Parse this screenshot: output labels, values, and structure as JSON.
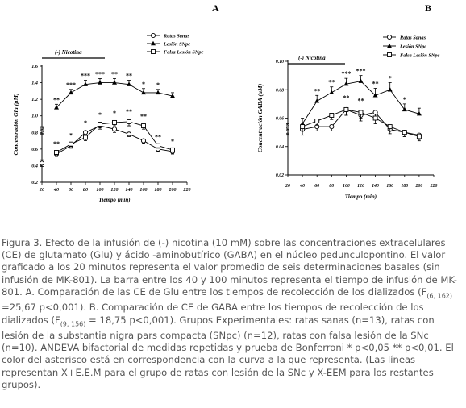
{
  "chart_data": [
    {
      "panel_label": "A",
      "type": "line",
      "bar_label": "(-) Nicotina",
      "xlabel": "Tiempo (min)",
      "ylabel": "Concentración Glu (μM)",
      "x_ticks": [
        "20",
        "40",
        "60",
        "80",
        "100",
        "120",
        "140",
        "160",
        "180",
        "200",
        "220"
      ],
      "y_ticks": [
        "0.2",
        "0.4",
        "0.6",
        "0.8",
        "1.0",
        "1.2",
        "1.4",
        "1.6"
      ],
      "xlim": [
        20,
        220
      ],
      "ylim": [
        0.2,
        1.6
      ],
      "basal": {
        "x": 20,
        "value": 0.82,
        "err": 0.05,
        "label": "0.82"
      },
      "basal_low": {
        "x": 20,
        "value": 0.43,
        "err": 0.04
      },
      "series": [
        {
          "name": "Ratas Sanas",
          "marker": "circle-open",
          "x": [
            40,
            60,
            80,
            100,
            120,
            140,
            160,
            180,
            200
          ],
          "values": [
            0.54,
            0.64,
            0.8,
            0.88,
            0.84,
            0.78,
            0.7,
            0.6,
            0.57
          ],
          "err": [
            0.03,
            0.03,
            0.04,
            0.04,
            0.04,
            0.03,
            0.03,
            0.03,
            0.03
          ]
        },
        {
          "name": "Lesión SNpc",
          "marker": "triangle-filled",
          "x": [
            40,
            60,
            80,
            100,
            120,
            140,
            160,
            180,
            200
          ],
          "values": [
            1.1,
            1.28,
            1.38,
            1.4,
            1.4,
            1.38,
            1.28,
            1.28,
            1.24
          ],
          "err": [
            0.04,
            0.04,
            0.05,
            0.05,
            0.05,
            0.05,
            0.05,
            0.04,
            0.04
          ]
        },
        {
          "name": "Falsa Lesión SNpc",
          "marker": "square-open",
          "x": [
            40,
            60,
            80,
            100,
            120,
            140,
            160,
            180,
            200
          ],
          "values": [
            0.56,
            0.66,
            0.74,
            0.9,
            0.92,
            0.93,
            0.88,
            0.64,
            0.59
          ],
          "err": [
            0.03,
            0.03,
            0.04,
            0.04,
            0.04,
            0.05,
            0.04,
            0.03,
            0.03
          ]
        }
      ],
      "annotations_lesion": [
        {
          "x": 40,
          "text": "**"
        },
        {
          "x": 60,
          "text": "***"
        },
        {
          "x": 80,
          "text": "***"
        },
        {
          "x": 100,
          "text": "***"
        },
        {
          "x": 120,
          "text": "**"
        },
        {
          "x": 140,
          "text": "**"
        },
        {
          "x": 160,
          "text": "*"
        },
        {
          "x": 180,
          "text": "*"
        }
      ],
      "annotations_lower": [
        {
          "x": 40,
          "text": "**"
        },
        {
          "x": 60,
          "text": "*"
        },
        {
          "x": 80,
          "text": "*"
        },
        {
          "x": 100,
          "text": "*"
        },
        {
          "x": 120,
          "text": "*"
        },
        {
          "x": 140,
          "text": "**"
        },
        {
          "x": 160,
          "text": "**"
        },
        {
          "x": 180,
          "text": "**"
        },
        {
          "x": 200,
          "text": "*"
        }
      ]
    },
    {
      "panel_label": "B",
      "type": "line",
      "bar_label": "(-) Nicotina",
      "xlabel": "Tiempo (min)",
      "ylabel": "Concentración GABA (μM)",
      "x_ticks": [
        "20",
        "40",
        "60",
        "80",
        "100",
        "120",
        "140",
        "160",
        "180",
        "200",
        "220"
      ],
      "y_ticks": [
        "0.02",
        "0.04",
        "0.06",
        "0.08",
        "0.10"
      ],
      "xlim": [
        20,
        220
      ],
      "ylim": [
        0.02,
        0.1
      ],
      "basal": {
        "x": 20,
        "value": 0.052,
        "err": 0.004,
        "label": "0.052"
      },
      "series": [
        {
          "name": "Ratas Sanas",
          "marker": "circle-open",
          "x": [
            40,
            60,
            80,
            100,
            120,
            140,
            160,
            180,
            200
          ],
          "values": [
            0.052,
            0.054,
            0.054,
            0.066,
            0.062,
            0.064,
            0.052,
            0.05,
            0.048
          ],
          "err": [
            0.004,
            0.003,
            0.003,
            0.004,
            0.004,
            0.004,
            0.003,
            0.003,
            0.003
          ]
        },
        {
          "name": "Lesión SNpc",
          "marker": "triangle-filled",
          "x": [
            40,
            60,
            80,
            100,
            120,
            140,
            160,
            180,
            200
          ],
          "values": [
            0.056,
            0.072,
            0.078,
            0.084,
            0.086,
            0.076,
            0.08,
            0.066,
            0.063
          ],
          "err": [
            0.004,
            0.004,
            0.004,
            0.004,
            0.004,
            0.005,
            0.005,
            0.004,
            0.004
          ]
        },
        {
          "name": "Falsa Lesión SNpc",
          "marker": "square-open",
          "x": [
            40,
            60,
            80,
            100,
            120,
            140,
            160,
            180,
            200
          ],
          "values": [
            0.054,
            0.058,
            0.062,
            0.066,
            0.064,
            0.06,
            0.054,
            0.05,
            0.047
          ],
          "err": [
            0.003,
            0.003,
            0.003,
            0.004,
            0.004,
            0.004,
            0.003,
            0.003,
            0.003
          ]
        }
      ],
      "annotations_lesion": [
        {
          "x": 60,
          "text": "**"
        },
        {
          "x": 80,
          "text": "**"
        },
        {
          "x": 100,
          "text": "***"
        },
        {
          "x": 120,
          "text": "***"
        },
        {
          "x": 140,
          "text": "**"
        },
        {
          "x": 160,
          "text": "*"
        },
        {
          "x": 180,
          "text": "*"
        }
      ],
      "annotations_lower": [
        {
          "x": 100,
          "text": "**"
        },
        {
          "x": 120,
          "text": "**"
        }
      ]
    }
  ],
  "legend_entries": [
    "Ratas Sanas",
    "Lesión SNpc",
    "Falsa Lesión SNpc"
  ],
  "legend_entries_b": [
    "Ratas Sanas",
    "Lesión SNpc",
    "Falsa Lesión SNpc"
  ],
  "caption": {
    "p1": "Figura 3. Efecto de la infusión de (-) nicotina (10 mM) sobre las concentraciones extracelulares (CE) de glutamato (Glu) y ácido -aminobutírico (GABA) en el núcleo pedunculopontino. El valor graficado a los 20 minutos representa el valor promedio de seis determinaciones basales (sin infusión de MK-801). La barra entre los 40 y 100 minutos representa el tiempo de infusión de MK-801. A. Comparación de las CE de Glu entre los tiempos de recolección de los dializados (F",
    "sub1": "(6, 162)",
    "p2": " =25,67 p<0,001). B. Comparación de CE de GABA entre los tiempos de recolección de los dializados (F",
    "sub2": "(9, 156)",
    "p3": " = 18,75 p<0,001). Grupos Experimentales: ratas sanas (n=13), ratas con lesión de la substantia nigra pars compacta (SNpc) (n=12), ratas con falsa lesión de la SNc (n=10). ANDEVA bifactorial de medidas repetidas y prueba de Bonferroni * p<0,05 ** p<0,01. El color del asterisco está en correspondencia con la curva a la que representa. (Las líneas representan X+E.E.M para el grupo de ratas con lesión de la SNc y X-EEM para los restantes grupos)."
  }
}
